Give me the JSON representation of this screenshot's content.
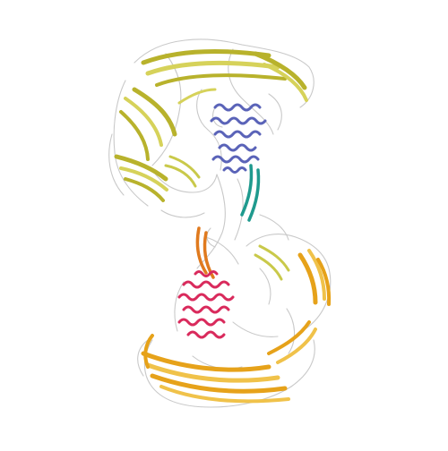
{
  "image": {
    "kind": "protein-structure-cartoon",
    "background_color": "#ffffff"
  },
  "colors": {
    "loop_gray": "#c9c9c9",
    "olive_sheet": "#b8b22c",
    "olive_sheet_light": "#d6d25a",
    "blue_helix": "#5a63b8",
    "teal_strand": "#1f9a8e",
    "orange_strand": "#e07a1e",
    "crimson_helix": "#d92a5c",
    "gold_sheet": "#e6a21a",
    "gold_sheet_light": "#f0c24a",
    "yellow_green": "#c9c94a"
  },
  "regions": [
    {
      "id": "upper-olive-beta-domain",
      "color": "olive_sheet"
    },
    {
      "id": "upper-blue-helical-domain",
      "color": "blue_helix"
    },
    {
      "id": "teal-linker-strands",
      "color": "teal_strand"
    },
    {
      "id": "orange-linker-strands",
      "color": "orange_strand"
    },
    {
      "id": "lower-crimson-helical-domain",
      "color": "crimson_helix"
    },
    {
      "id": "lower-gold-beta-domain",
      "color": "gold_sheet"
    }
  ]
}
